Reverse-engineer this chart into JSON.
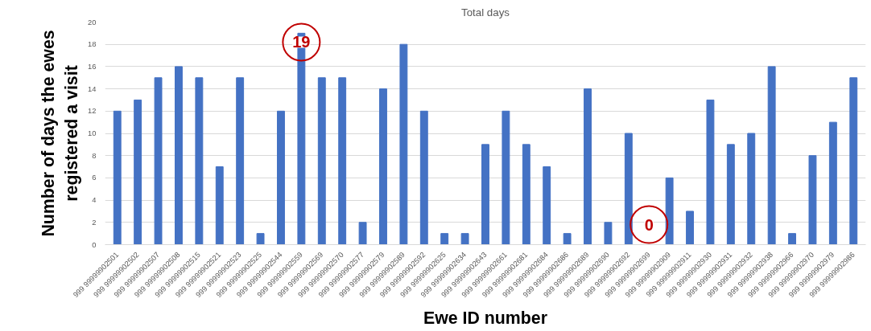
{
  "chart_data": {
    "type": "bar",
    "title": "Total days",
    "xlabel": "Ewe ID number",
    "ylabel": "Number of days the ewes\nregistered a visit",
    "categories": [
      "999 99999902501",
      "999 99999902502",
      "999 99999902507",
      "999 99999902508",
      "999 99999902515",
      "999 99999902521",
      "999 99999902523",
      "999 99999902525",
      "999 99999902544",
      "999 99999902559",
      "999 99999902569",
      "999 99999902570",
      "999 99999902577",
      "999 99999902579",
      "999 99999902589",
      "999 99999902592",
      "999 99999902625",
      "999 99999902634",
      "999 99999902643",
      "999 99999902661",
      "999 99999902681",
      "999 99999902684",
      "999 99999902686",
      "999 99999902689",
      "999 99999902690",
      "999 99999902692",
      "999 99999902699",
      "999 99999902909",
      "999 99999902911",
      "999 99999902930",
      "999 99999902931",
      "999 99999902932",
      "999 99999902938",
      "999 99999902966",
      "999 99999902970",
      "999 99999902979",
      "999 99999902986"
    ],
    "values": [
      12,
      13,
      15,
      16,
      15,
      7,
      15,
      1,
      12,
      19,
      15,
      15,
      2,
      14,
      18,
      12,
      1,
      1,
      9,
      12,
      9,
      7,
      1,
      14,
      2,
      10,
      0,
      6,
      3,
      13,
      9,
      10,
      16,
      1,
      8,
      11,
      15
    ],
    "color": "#4472c4",
    "ylim": [
      0,
      20
    ],
    "yticks": [
      0,
      2,
      4,
      6,
      8,
      10,
      12,
      14,
      16,
      18,
      20
    ],
    "grid": "y",
    "annotations": [
      {
        "text": "19",
        "x": "999 99999902559",
        "y": 19
      },
      {
        "text": "0",
        "x": "999 99999902699",
        "y": 0
      }
    ]
  }
}
